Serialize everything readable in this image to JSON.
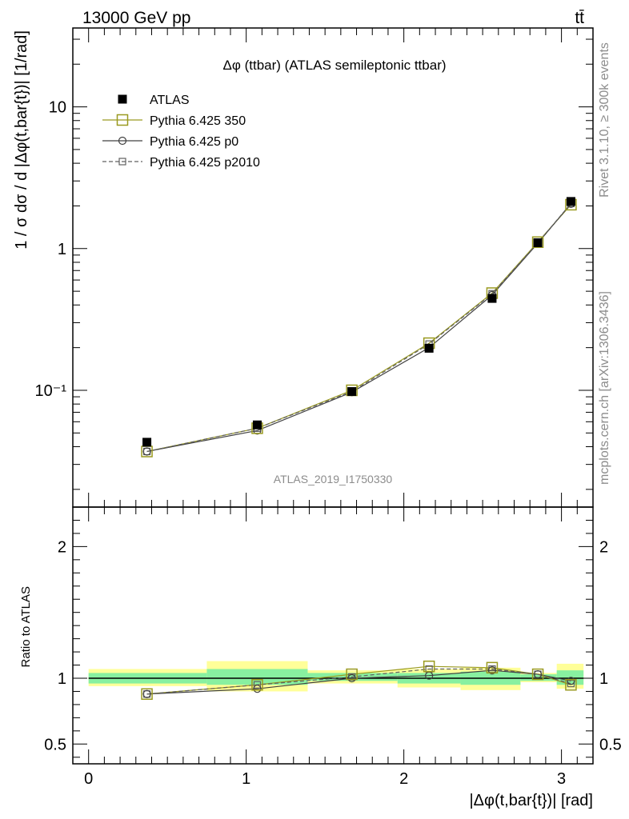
{
  "header": {
    "left": "13000 GeV pp",
    "right": "tt̄"
  },
  "side_label_top": "Rivet 3.1.10, ≥ 300k events",
  "side_label_bottom": "mcplots.cern.ch [arXiv:1306.3436]",
  "watermark": "ATLAS_2019_I1750330",
  "chart_data": [
    {
      "type": "scatter",
      "panel": "main",
      "title": "Δφ (ttbar) (ATLAS semileptonic ttbar)",
      "ylabel": "1 / σ dσ / d |Δφ(t,bar{t})| [1/rad]",
      "yscale": "log",
      "ylim": [
        0.015,
        36
      ],
      "xlim": [
        -0.1,
        3.2
      ],
      "y_ticks": [
        {
          "value": 0.1,
          "label": "10⁻¹"
        },
        {
          "value": 1,
          "label": "1"
        },
        {
          "value": 10,
          "label": "10"
        }
      ],
      "legend_position": "top-left",
      "x": [
        0.37,
        1.07,
        1.67,
        2.16,
        2.56,
        2.85,
        3.06
      ],
      "series": [
        {
          "name": "ATLAS",
          "color": "#000000",
          "marker": "filled-square",
          "values": [
            0.043,
            0.057,
            0.098,
            0.198,
            0.445,
            1.1,
            2.15
          ]
        },
        {
          "name": "Pythia 6.425 350",
          "color": "#9a9a20",
          "marker": "open-square",
          "line": "solid",
          "values": [
            0.037,
            0.054,
            0.1,
            0.215,
            0.485,
            1.11,
            2.04
          ]
        },
        {
          "name": "Pythia 6.425 p0",
          "color": "#404040",
          "marker": "open-circle",
          "line": "solid",
          "values": [
            0.037,
            0.052,
            0.097,
            0.2,
            0.47,
            1.09,
            2.07
          ]
        },
        {
          "name": "Pythia 6.425 p2010",
          "color": "#606060",
          "marker": "small-open-square",
          "line": "dashed",
          "values": [
            0.037,
            0.054,
            0.098,
            0.212,
            0.48,
            1.1,
            2.08
          ]
        }
      ]
    },
    {
      "type": "scatter",
      "panel": "ratio",
      "ylabel": "Ratio to ATLAS",
      "xlabel": "|Δφ(t,bar{t})| [rad]",
      "ylim": [
        0.35,
        2.3
      ],
      "xlim": [
        -0.1,
        3.2
      ],
      "x_ticks": [
        0,
        1,
        2,
        3
      ],
      "y_ticks": [
        0.5,
        1,
        2
      ],
      "x": [
        0.37,
        1.07,
        1.67,
        2.16,
        2.56,
        2.85,
        3.06
      ],
      "bands": [
        {
          "x0": 0.0,
          "x1": 0.75,
          "yellow": [
            0.94,
            1.07
          ],
          "green": [
            0.96,
            1.04
          ]
        },
        {
          "x0": 0.75,
          "x1": 1.39,
          "yellow": [
            0.9,
            1.13
          ],
          "green": [
            0.95,
            1.07
          ]
        },
        {
          "x0": 1.39,
          "x1": 1.96,
          "yellow": [
            0.96,
            1.06
          ],
          "green": [
            0.98,
            1.04
          ]
        },
        {
          "x0": 1.96,
          "x1": 2.36,
          "yellow": [
            0.93,
            1.07
          ],
          "green": [
            0.96,
            1.04
          ]
        },
        {
          "x0": 2.36,
          "x1": 2.74,
          "yellow": [
            0.91,
            1.08
          ],
          "green": [
            0.95,
            1.05
          ]
        },
        {
          "x0": 2.74,
          "x1": 2.97,
          "yellow": [
            0.97,
            1.04
          ],
          "green": [
            0.98,
            1.03
          ]
        },
        {
          "x0": 2.97,
          "x1": 3.14,
          "yellow": [
            0.92,
            1.11
          ],
          "green": [
            0.95,
            1.06
          ]
        }
      ],
      "series": [
        {
          "name": "Pythia 6.425 350",
          "color": "#9a9a20",
          "marker": "open-square",
          "line": "solid",
          "values": [
            0.88,
            0.95,
            1.03,
            1.09,
            1.08,
            1.03,
            0.95
          ]
        },
        {
          "name": "Pythia 6.425 p0",
          "color": "#404040",
          "marker": "open-circle",
          "line": "solid",
          "values": [
            0.88,
            0.92,
            1.0,
            1.02,
            1.06,
            1.03,
            0.98
          ]
        },
        {
          "name": "Pythia 6.425 p2010",
          "color": "#606060",
          "marker": "small-open-square",
          "line": "dashed",
          "values": [
            0.88,
            0.95,
            1.01,
            1.07,
            1.07,
            1.03,
            0.96
          ]
        }
      ]
    }
  ]
}
